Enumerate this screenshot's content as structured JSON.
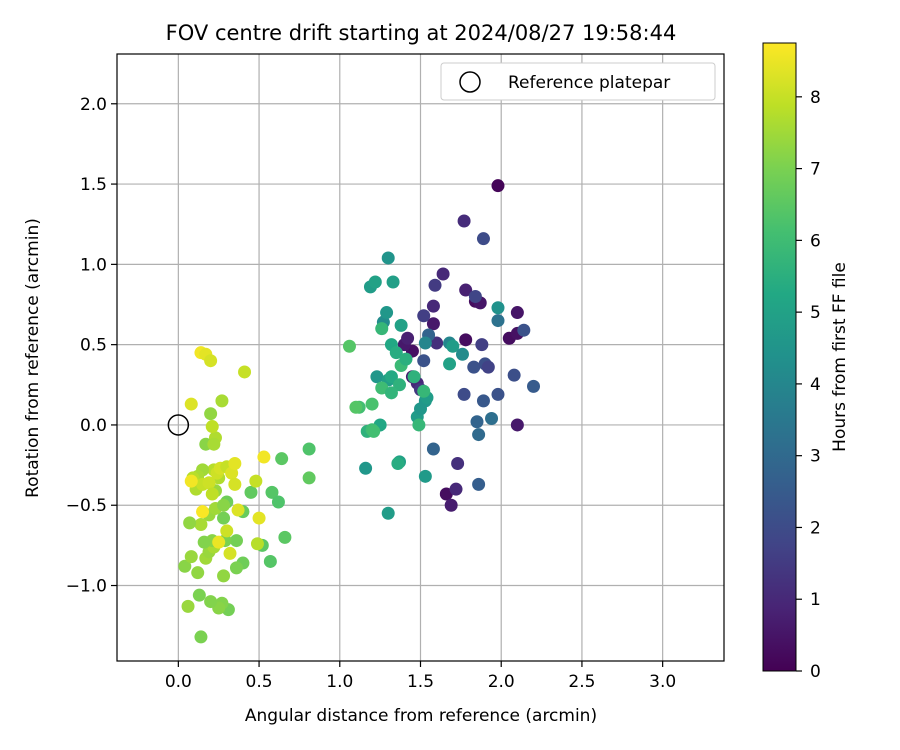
{
  "chart_data": {
    "type": "scatter",
    "title": "FOV centre drift starting at 2024/08/27 19:58:44",
    "xlabel": "Angular distance from reference (arcmin)",
    "ylabel": "Rotation from reference (arcmin)",
    "xlim": [
      -0.38,
      3.38
    ],
    "ylim": [
      -1.47,
      2.31
    ],
    "xticks": [
      0.0,
      0.5,
      1.0,
      1.5,
      2.0,
      2.5,
      3.0
    ],
    "xtick_labels": [
      "0.0",
      "0.5",
      "1.0",
      "1.5",
      "2.0",
      "2.5",
      "3.0"
    ],
    "yticks": [
      -1.0,
      -0.5,
      0.0,
      0.5,
      1.0,
      1.5,
      2.0
    ],
    "ytick_labels": [
      "−1.0",
      "−0.5",
      "0.0",
      "0.5",
      "1.0",
      "1.5",
      "2.0"
    ],
    "grid": true,
    "legend": {
      "position": "top-right",
      "entries": [
        "Reference platepar"
      ]
    },
    "reference_point": {
      "x": 0.0,
      "y": 0.0
    },
    "colorbar": {
      "label": "Hours from first FF file",
      "range": [
        0,
        8.75
      ],
      "ticks": [
        0,
        1,
        2,
        3,
        4,
        5,
        6,
        7,
        8
      ],
      "tick_labels": [
        "0",
        "1",
        "2",
        "3",
        "4",
        "5",
        "6",
        "7",
        "8"
      ],
      "colormap": "viridis"
    },
    "points": [
      {
        "x": 1.98,
        "y": 1.49,
        "h": 0.1
      },
      {
        "x": 2.05,
        "y": 0.54,
        "h": 0.3
      },
      {
        "x": 2.1,
        "y": 0.57,
        "h": 0.4
      },
      {
        "x": 2.1,
        "y": 0.7,
        "h": 0.5
      },
      {
        "x": 2.1,
        "y": 0.0,
        "h": 0.6
      },
      {
        "x": 1.84,
        "y": 0.77,
        "h": 0.3
      },
      {
        "x": 1.87,
        "y": 0.76,
        "h": 0.5
      },
      {
        "x": 1.78,
        "y": 0.53,
        "h": 0.3
      },
      {
        "x": 1.78,
        "y": 0.84,
        "h": 0.8
      },
      {
        "x": 1.66,
        "y": -0.43,
        "h": 0.3
      },
      {
        "x": 1.69,
        "y": -0.5,
        "h": 0.7
      },
      {
        "x": 1.72,
        "y": -0.4,
        "h": 1.0
      },
      {
        "x": 1.73,
        "y": -0.24,
        "h": 1.2
      },
      {
        "x": 1.45,
        "y": 0.3,
        "h": 0.7
      },
      {
        "x": 1.45,
        "y": 0.46,
        "h": 0.4
      },
      {
        "x": 1.4,
        "y": 0.5,
        "h": 0.6
      },
      {
        "x": 1.42,
        "y": 0.54,
        "h": 0.8
      },
      {
        "x": 1.58,
        "y": 0.63,
        "h": 0.6
      },
      {
        "x": 1.58,
        "y": 0.74,
        "h": 1.0
      },
      {
        "x": 1.6,
        "y": 0.51,
        "h": 1.2
      },
      {
        "x": 1.64,
        "y": 0.94,
        "h": 1.0
      },
      {
        "x": 1.59,
        "y": 0.87,
        "h": 1.5
      },
      {
        "x": 1.52,
        "y": 0.68,
        "h": 1.6
      },
      {
        "x": 1.48,
        "y": 0.26,
        "h": 1.0
      },
      {
        "x": 1.5,
        "y": 0.22,
        "h": 1.4
      },
      {
        "x": 1.77,
        "y": 1.27,
        "h": 1.1
      },
      {
        "x": 1.89,
        "y": 1.16,
        "h": 2.0
      },
      {
        "x": 1.84,
        "y": 0.8,
        "h": 1.8
      },
      {
        "x": 1.88,
        "y": 0.5,
        "h": 1.6
      },
      {
        "x": 1.83,
        "y": 0.36,
        "h": 2.2
      },
      {
        "x": 1.9,
        "y": 0.38,
        "h": 2.1
      },
      {
        "x": 1.92,
        "y": 0.36,
        "h": 1.7
      },
      {
        "x": 1.77,
        "y": 0.19,
        "h": 2.0
      },
      {
        "x": 1.89,
        "y": 0.15,
        "h": 2.4
      },
      {
        "x": 1.98,
        "y": 0.19,
        "h": 2.2
      },
      {
        "x": 2.08,
        "y": 0.31,
        "h": 2.1
      },
      {
        "x": 2.14,
        "y": 0.59,
        "h": 2.2
      },
      {
        "x": 2.2,
        "y": 0.24,
        "h": 2.5
      },
      {
        "x": 1.85,
        "y": 0.02,
        "h": 2.8
      },
      {
        "x": 1.86,
        "y": -0.06,
        "h": 3.0
      },
      {
        "x": 1.94,
        "y": 0.04,
        "h": 3.2
      },
      {
        "x": 1.86,
        "y": -0.37,
        "h": 2.6
      },
      {
        "x": 1.98,
        "y": 0.65,
        "h": 3.3
      },
      {
        "x": 1.98,
        "y": 0.73,
        "h": 4.4
      },
      {
        "x": 1.58,
        "y": -0.15,
        "h": 2.8
      },
      {
        "x": 1.52,
        "y": 0.4,
        "h": 2.2
      },
      {
        "x": 1.55,
        "y": 0.56,
        "h": 2.8
      },
      {
        "x": 1.53,
        "y": 0.51,
        "h": 4.0
      },
      {
        "x": 1.68,
        "y": 0.51,
        "h": 4.0
      },
      {
        "x": 1.7,
        "y": 0.49,
        "h": 4.8
      },
      {
        "x": 1.76,
        "y": 0.44,
        "h": 4.2
      },
      {
        "x": 1.68,
        "y": 0.38,
        "h": 5.0
      },
      {
        "x": 1.3,
        "y": 1.04,
        "h": 4.5
      },
      {
        "x": 1.19,
        "y": 0.86,
        "h": 4.8
      },
      {
        "x": 1.22,
        "y": 0.89,
        "h": 5.0
      },
      {
        "x": 1.33,
        "y": 0.89,
        "h": 4.9
      },
      {
        "x": 1.27,
        "y": 0.64,
        "h": 4.2
      },
      {
        "x": 1.29,
        "y": 0.7,
        "h": 4.6
      },
      {
        "x": 1.32,
        "y": 0.5,
        "h": 5.2
      },
      {
        "x": 1.35,
        "y": 0.45,
        "h": 5.4
      },
      {
        "x": 1.38,
        "y": 0.62,
        "h": 5.0
      },
      {
        "x": 1.26,
        "y": 0.6,
        "h": 5.8
      },
      {
        "x": 1.23,
        "y": 0.3,
        "h": 4.6
      },
      {
        "x": 1.3,
        "y": 0.28,
        "h": 4.9
      },
      {
        "x": 1.32,
        "y": 0.3,
        "h": 5.3
      },
      {
        "x": 1.37,
        "y": 0.25,
        "h": 5.6
      },
      {
        "x": 1.26,
        "y": 0.23,
        "h": 6.0
      },
      {
        "x": 1.32,
        "y": 0.2,
        "h": 5.7
      },
      {
        "x": 1.38,
        "y": 0.37,
        "h": 5.9
      },
      {
        "x": 1.41,
        "y": 0.41,
        "h": 5.5
      },
      {
        "x": 1.46,
        "y": 0.3,
        "h": 5.6
      },
      {
        "x": 1.48,
        "y": 0.05,
        "h": 4.8
      },
      {
        "x": 1.5,
        "y": 0.1,
        "h": 4.6
      },
      {
        "x": 1.53,
        "y": 0.15,
        "h": 4.6
      },
      {
        "x": 1.54,
        "y": 0.17,
        "h": 4.8
      },
      {
        "x": 1.52,
        "y": 0.21,
        "h": 5.8
      },
      {
        "x": 1.53,
        "y": -0.32,
        "h": 4.7
      },
      {
        "x": 1.49,
        "y": 0.0,
        "h": 5.8
      },
      {
        "x": 1.37,
        "y": -0.23,
        "h": 5.0
      },
      {
        "x": 1.36,
        "y": -0.24,
        "h": 5.4
      },
      {
        "x": 1.16,
        "y": -0.27,
        "h": 4.6
      },
      {
        "x": 1.3,
        "y": -0.55,
        "h": 4.8
      },
      {
        "x": 1.25,
        "y": 0.0,
        "h": 5.2
      },
      {
        "x": 1.17,
        "y": -0.04,
        "h": 5.6
      },
      {
        "x": 1.2,
        "y": -0.03,
        "h": 6.0
      },
      {
        "x": 1.21,
        "y": -0.04,
        "h": 6.1
      },
      {
        "x": 1.2,
        "y": 0.13,
        "h": 6.2
      },
      {
        "x": 1.12,
        "y": 0.11,
        "h": 6.1
      },
      {
        "x": 1.1,
        "y": 0.11,
        "h": 6.4
      },
      {
        "x": 1.06,
        "y": 0.49,
        "h": 6.4
      },
      {
        "x": 0.81,
        "y": -0.15,
        "h": 6.3
      },
      {
        "x": 0.81,
        "y": -0.33,
        "h": 6.6
      },
      {
        "x": 0.64,
        "y": -0.21,
        "h": 6.5
      },
      {
        "x": 0.66,
        "y": -0.7,
        "h": 6.5
      },
      {
        "x": 0.57,
        "y": -0.85,
        "h": 6.4
      },
      {
        "x": 0.58,
        "y": -0.42,
        "h": 6.4
      },
      {
        "x": 0.62,
        "y": -0.48,
        "h": 6.3
      },
      {
        "x": 0.52,
        "y": -0.75,
        "h": 6.5
      },
      {
        "x": 0.45,
        "y": -0.42,
        "h": 6.6
      },
      {
        "x": 0.4,
        "y": -0.54,
        "h": 6.7
      },
      {
        "x": 0.4,
        "y": -0.86,
        "h": 6.8
      },
      {
        "x": 0.36,
        "y": -0.72,
        "h": 6.9
      },
      {
        "x": 0.36,
        "y": -0.89,
        "h": 7.0
      },
      {
        "x": 0.3,
        "y": -0.48,
        "h": 6.8
      },
      {
        "x": 0.28,
        "y": -0.58,
        "h": 6.9
      },
      {
        "x": 0.29,
        "y": -0.72,
        "h": 7.0
      },
      {
        "x": 0.31,
        "y": -1.15,
        "h": 6.9
      },
      {
        "x": 0.27,
        "y": -1.11,
        "h": 7.1
      },
      {
        "x": 0.25,
        "y": -1.14,
        "h": 7.2
      },
      {
        "x": 0.2,
        "y": -1.1,
        "h": 7.1
      },
      {
        "x": 0.13,
        "y": -1.06,
        "h": 7.0
      },
      {
        "x": 0.14,
        "y": -1.32,
        "h": 7.0
      },
      {
        "x": 0.06,
        "y": -1.13,
        "h": 7.4
      },
      {
        "x": 0.04,
        "y": -0.88,
        "h": 7.2
      },
      {
        "x": 0.08,
        "y": -0.82,
        "h": 7.4
      },
      {
        "x": 0.12,
        "y": -0.92,
        "h": 7.3
      },
      {
        "x": 0.17,
        "y": -0.83,
        "h": 7.5
      },
      {
        "x": 0.19,
        "y": -0.79,
        "h": 7.4
      },
      {
        "x": 0.22,
        "y": -0.76,
        "h": 7.6
      },
      {
        "x": 0.28,
        "y": -0.94,
        "h": 7.3
      },
      {
        "x": 0.19,
        "y": -0.56,
        "h": 7.4
      },
      {
        "x": 0.21,
        "y": -0.72,
        "h": 7.2
      },
      {
        "x": 0.16,
        "y": -0.73,
        "h": 7.1
      },
      {
        "x": 0.14,
        "y": -0.62,
        "h": 7.6
      },
      {
        "x": 0.23,
        "y": -0.52,
        "h": 7.5
      },
      {
        "x": 0.28,
        "y": -0.5,
        "h": 7.2
      },
      {
        "x": 0.23,
        "y": -0.41,
        "h": 7.4
      },
      {
        "x": 0.25,
        "y": -0.33,
        "h": 7.7
      },
      {
        "x": 0.22,
        "y": -0.28,
        "h": 7.8
      },
      {
        "x": 0.15,
        "y": -0.28,
        "h": 7.5
      },
      {
        "x": 0.12,
        "y": -0.32,
        "h": 7.6
      },
      {
        "x": 0.11,
        "y": -0.4,
        "h": 7.7
      },
      {
        "x": 0.09,
        "y": -0.33,
        "h": 7.8
      },
      {
        "x": 0.07,
        "y": -0.61,
        "h": 7.3
      },
      {
        "x": 0.15,
        "y": -0.37,
        "h": 8.0
      },
      {
        "x": 0.19,
        "y": -0.36,
        "h": 8.1
      },
      {
        "x": 0.21,
        "y": -0.43,
        "h": 7.9
      },
      {
        "x": 0.24,
        "y": -0.3,
        "h": 8.1
      },
      {
        "x": 0.26,
        "y": -0.27,
        "h": 8.2
      },
      {
        "x": 0.3,
        "y": -0.26,
        "h": 8.0
      },
      {
        "x": 0.33,
        "y": -0.3,
        "h": 8.3
      },
      {
        "x": 0.35,
        "y": -0.24,
        "h": 8.4
      },
      {
        "x": 0.35,
        "y": -0.37,
        "h": 8.2
      },
      {
        "x": 0.37,
        "y": -0.53,
        "h": 8.3
      },
      {
        "x": 0.3,
        "y": -0.66,
        "h": 8.1
      },
      {
        "x": 0.32,
        "y": -0.8,
        "h": 8.2
      },
      {
        "x": 0.25,
        "y": -0.73,
        "h": 8.5
      },
      {
        "x": 0.5,
        "y": -0.58,
        "h": 8.4
      },
      {
        "x": 0.48,
        "y": -0.35,
        "h": 8.0
      },
      {
        "x": 0.53,
        "y": -0.2,
        "h": 8.6
      },
      {
        "x": 0.49,
        "y": -0.74,
        "h": 7.8
      },
      {
        "x": 0.23,
        "y": -0.08,
        "h": 7.7
      },
      {
        "x": 0.21,
        "y": -0.01,
        "h": 7.9
      },
      {
        "x": 0.17,
        "y": -0.12,
        "h": 7.2
      },
      {
        "x": 0.22,
        "y": -0.12,
        "h": 7.6
      },
      {
        "x": 0.08,
        "y": -0.35,
        "h": 8.6
      },
      {
        "x": 0.15,
        "y": -0.54,
        "h": 8.7
      },
      {
        "x": 0.2,
        "y": 0.07,
        "h": 7.3
      },
      {
        "x": 0.27,
        "y": 0.15,
        "h": 7.6
      },
      {
        "x": 0.08,
        "y": 0.13,
        "h": 8.3
      },
      {
        "x": 0.14,
        "y": 0.45,
        "h": 8.6
      },
      {
        "x": 0.17,
        "y": 0.44,
        "h": 8.4
      },
      {
        "x": 0.2,
        "y": 0.4,
        "h": 8.2
      },
      {
        "x": 0.41,
        "y": 0.33,
        "h": 8.0
      }
    ]
  }
}
